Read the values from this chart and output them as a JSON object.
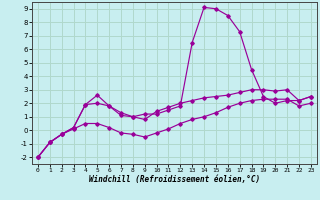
{
  "xlabel": "Windchill (Refroidissement éolien,°C)",
  "background_color": "#c8eef0",
  "grid_color": "#b0d8cc",
  "line_color": "#990099",
  "xlim": [
    -0.5,
    23.5
  ],
  "ylim": [
    -2.5,
    9.5
  ],
  "xticks": [
    0,
    1,
    2,
    3,
    4,
    5,
    6,
    7,
    8,
    9,
    10,
    11,
    12,
    13,
    14,
    15,
    16,
    17,
    18,
    19,
    20,
    21,
    22,
    23
  ],
  "yticks": [
    -2,
    -1,
    0,
    1,
    2,
    3,
    4,
    5,
    6,
    7,
    8,
    9
  ],
  "series": [
    {
      "x": [
        0,
        1,
        2,
        3,
        4,
        5,
        6,
        7,
        8,
        9,
        10,
        11,
        12,
        13,
        14,
        15,
        16,
        17,
        18,
        19,
        20,
        21,
        22,
        23
      ],
      "y": [
        -2.0,
        -0.9,
        -0.3,
        0.2,
        1.9,
        2.6,
        1.8,
        1.1,
        1.0,
        1.2,
        1.2,
        1.5,
        1.8,
        6.5,
        9.1,
        9.0,
        8.5,
        7.3,
        4.5,
        2.5,
        2.0,
        2.2,
        2.2,
        2.5
      ]
    },
    {
      "x": [
        0,
        1,
        2,
        3,
        4,
        5,
        6,
        7,
        8,
        9,
        10,
        11,
        12,
        13,
        14,
        15,
        16,
        17,
        18,
        19,
        20,
        21,
        22,
        23
      ],
      "y": [
        -2.0,
        -0.9,
        -0.3,
        0.2,
        1.9,
        2.0,
        1.8,
        1.3,
        1.0,
        0.8,
        1.4,
        1.7,
        2.0,
        2.2,
        2.4,
        2.5,
        2.6,
        2.8,
        3.0,
        3.0,
        2.9,
        3.0,
        2.2,
        2.5
      ]
    },
    {
      "x": [
        0,
        1,
        2,
        3,
        4,
        5,
        6,
        7,
        8,
        9,
        10,
        11,
        12,
        13,
        14,
        15,
        16,
        17,
        18,
        19,
        20,
        21,
        22,
        23
      ],
      "y": [
        -2.0,
        -0.9,
        -0.3,
        0.1,
        0.5,
        0.5,
        0.2,
        -0.2,
        -0.3,
        -0.5,
        -0.2,
        0.1,
        0.5,
        0.8,
        1.0,
        1.3,
        1.7,
        2.0,
        2.2,
        2.3,
        2.3,
        2.3,
        1.8,
        2.0
      ]
    }
  ]
}
